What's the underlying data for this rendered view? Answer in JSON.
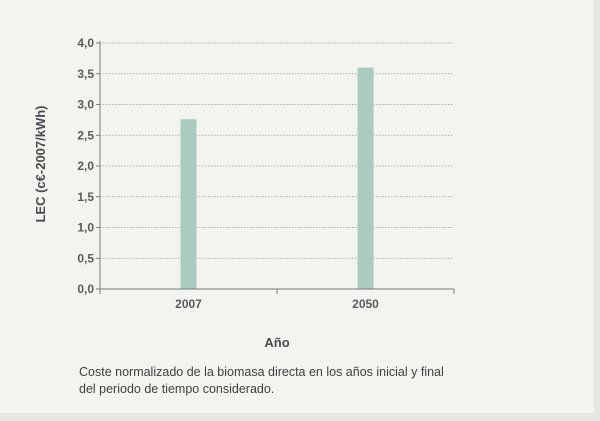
{
  "chart_data": {
    "type": "bar",
    "categories": [
      "2007",
      "2050"
    ],
    "values": [
      2.76,
      3.6
    ],
    "yticks": [
      "0,0",
      "0,5",
      "1,0",
      "1,5",
      "2,0",
      "2,5",
      "3,0",
      "3,5",
      "4,0"
    ],
    "ylim": [
      0,
      4.0
    ],
    "xlabel": "Año",
    "ylabel": "LEC (c€-2007/kWh)",
    "grid": true,
    "colors": {
      "bar": "#a9cbc0",
      "grid": "#9a9a9a",
      "axis": "#7a7a7a"
    }
  },
  "caption": {
    "line1": "Coste normalizado de la biomasa directa en los años inicial y final",
    "line2": "del periodo de tiempo considerado."
  }
}
